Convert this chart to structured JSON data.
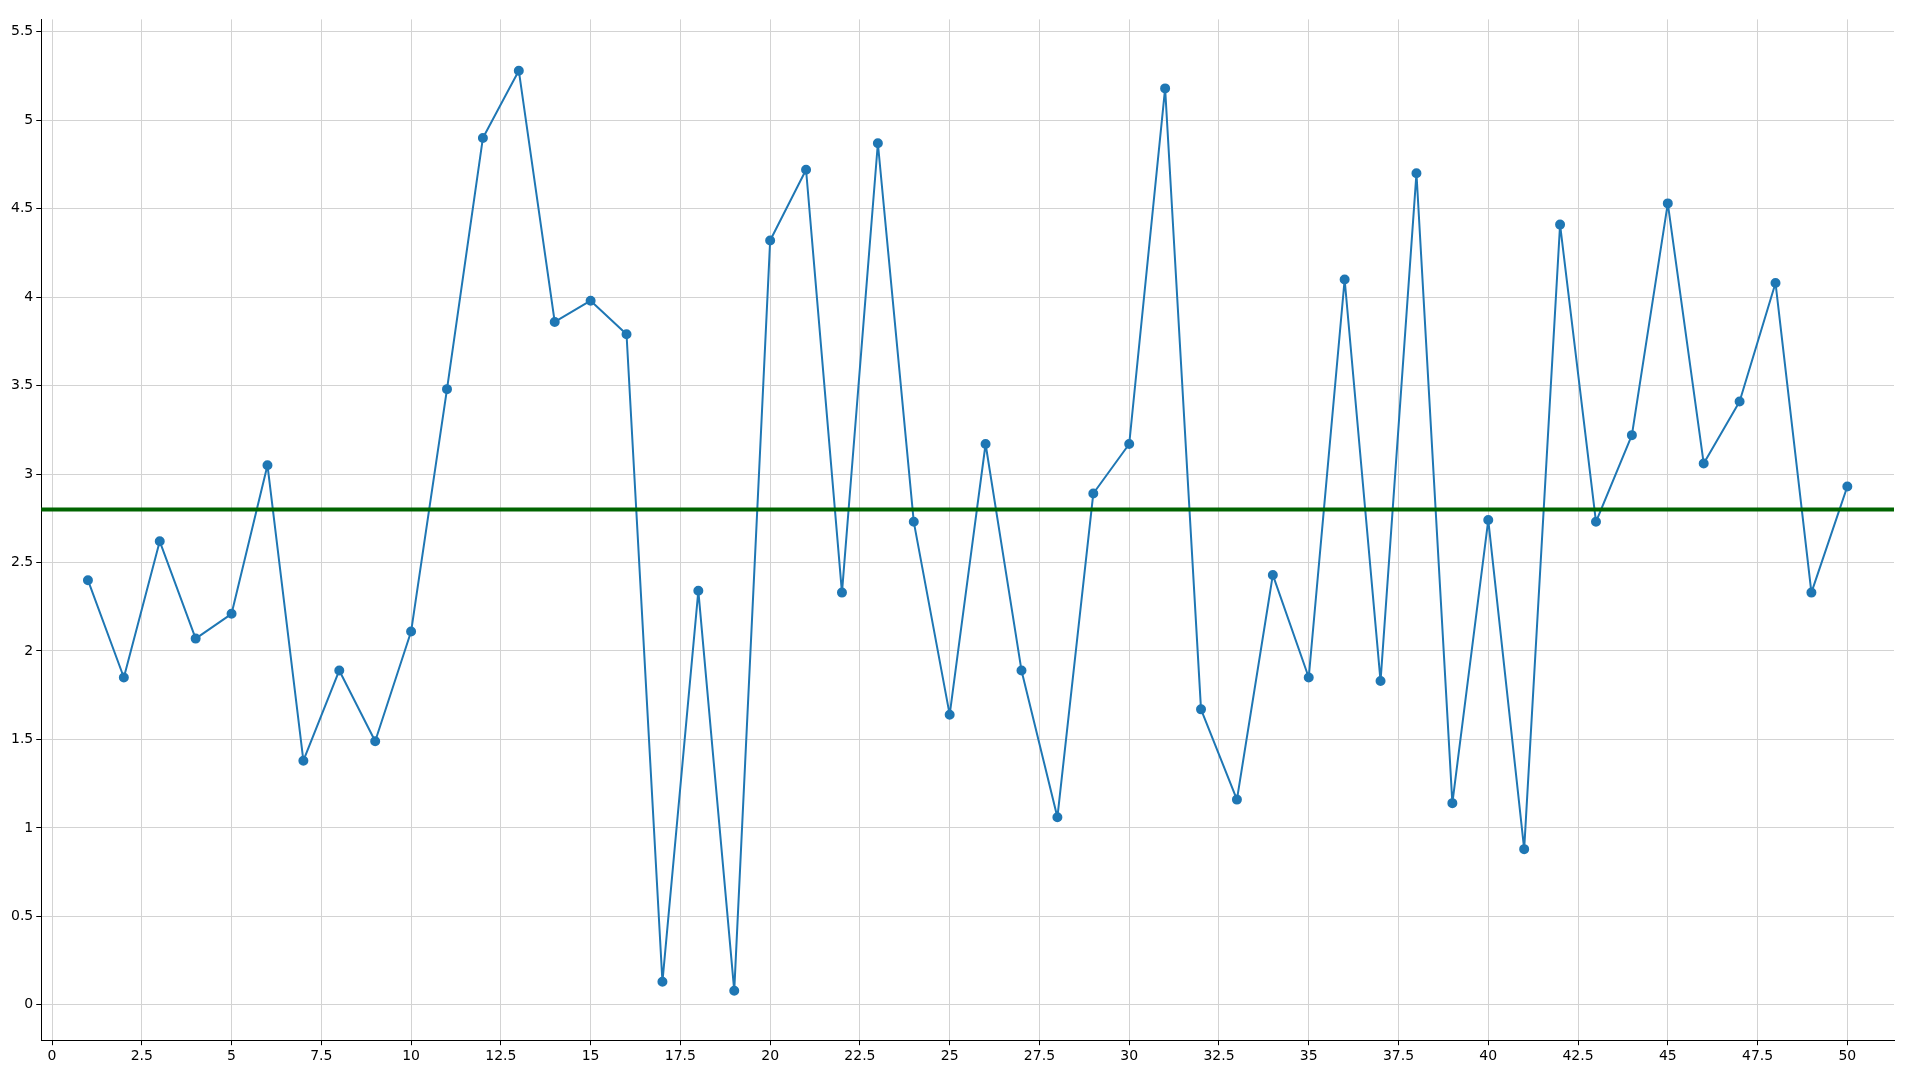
{
  "chart_data": {
    "type": "line",
    "x": [
      1,
      2,
      3,
      4,
      5,
      6,
      7,
      8,
      9,
      10,
      11,
      12,
      13,
      14,
      15,
      16,
      17,
      18,
      19,
      20,
      21,
      22,
      23,
      24,
      25,
      26,
      27,
      28,
      29,
      30,
      31,
      32,
      33,
      34,
      35,
      36,
      37,
      38,
      39,
      40,
      41,
      42,
      43,
      44,
      45,
      46,
      47,
      48,
      49,
      50
    ],
    "series": [
      {
        "color": "#1f77b4",
        "values": [
          2.4,
          1.85,
          2.62,
          2.07,
          2.21,
          3.05,
          1.38,
          1.89,
          1.49,
          2.11,
          3.48,
          4.9,
          5.28,
          3.86,
          3.98,
          3.79,
          0.13,
          2.34,
          0.08,
          4.32,
          4.72,
          2.33,
          4.87,
          2.73,
          1.64,
          3.17,
          1.89,
          1.06,
          2.89,
          3.17,
          5.18,
          1.67,
          1.16,
          2.43,
          1.85,
          4.1,
          1.83,
          4.7,
          1.14,
          2.74,
          0.88,
          4.41,
          2.73,
          3.22,
          4.53,
          3.06,
          3.41,
          4.08,
          2.33,
          2.93
        ]
      }
    ],
    "xlim": [
      -0.3,
      51.3
    ],
    "ylim": [
      -0.2,
      5.57
    ],
    "xticks": [
      0,
      2.5,
      5,
      7.5,
      10,
      12.5,
      15,
      17.5,
      20,
      22.5,
      25,
      27.5,
      30,
      32.5,
      35,
      37.5,
      40,
      42.5,
      45,
      47.5,
      50
    ],
    "yticks": [
      0,
      0.5,
      1,
      1.5,
      2,
      2.5,
      3,
      3.5,
      4,
      4.5,
      5,
      5.5
    ],
    "ref_lines": [
      {
        "axis": "y",
        "value": 2.8,
        "color": "#006400"
      }
    ],
    "grid": true,
    "marker": "circle",
    "line_style": "solid",
    "legend": false
  }
}
